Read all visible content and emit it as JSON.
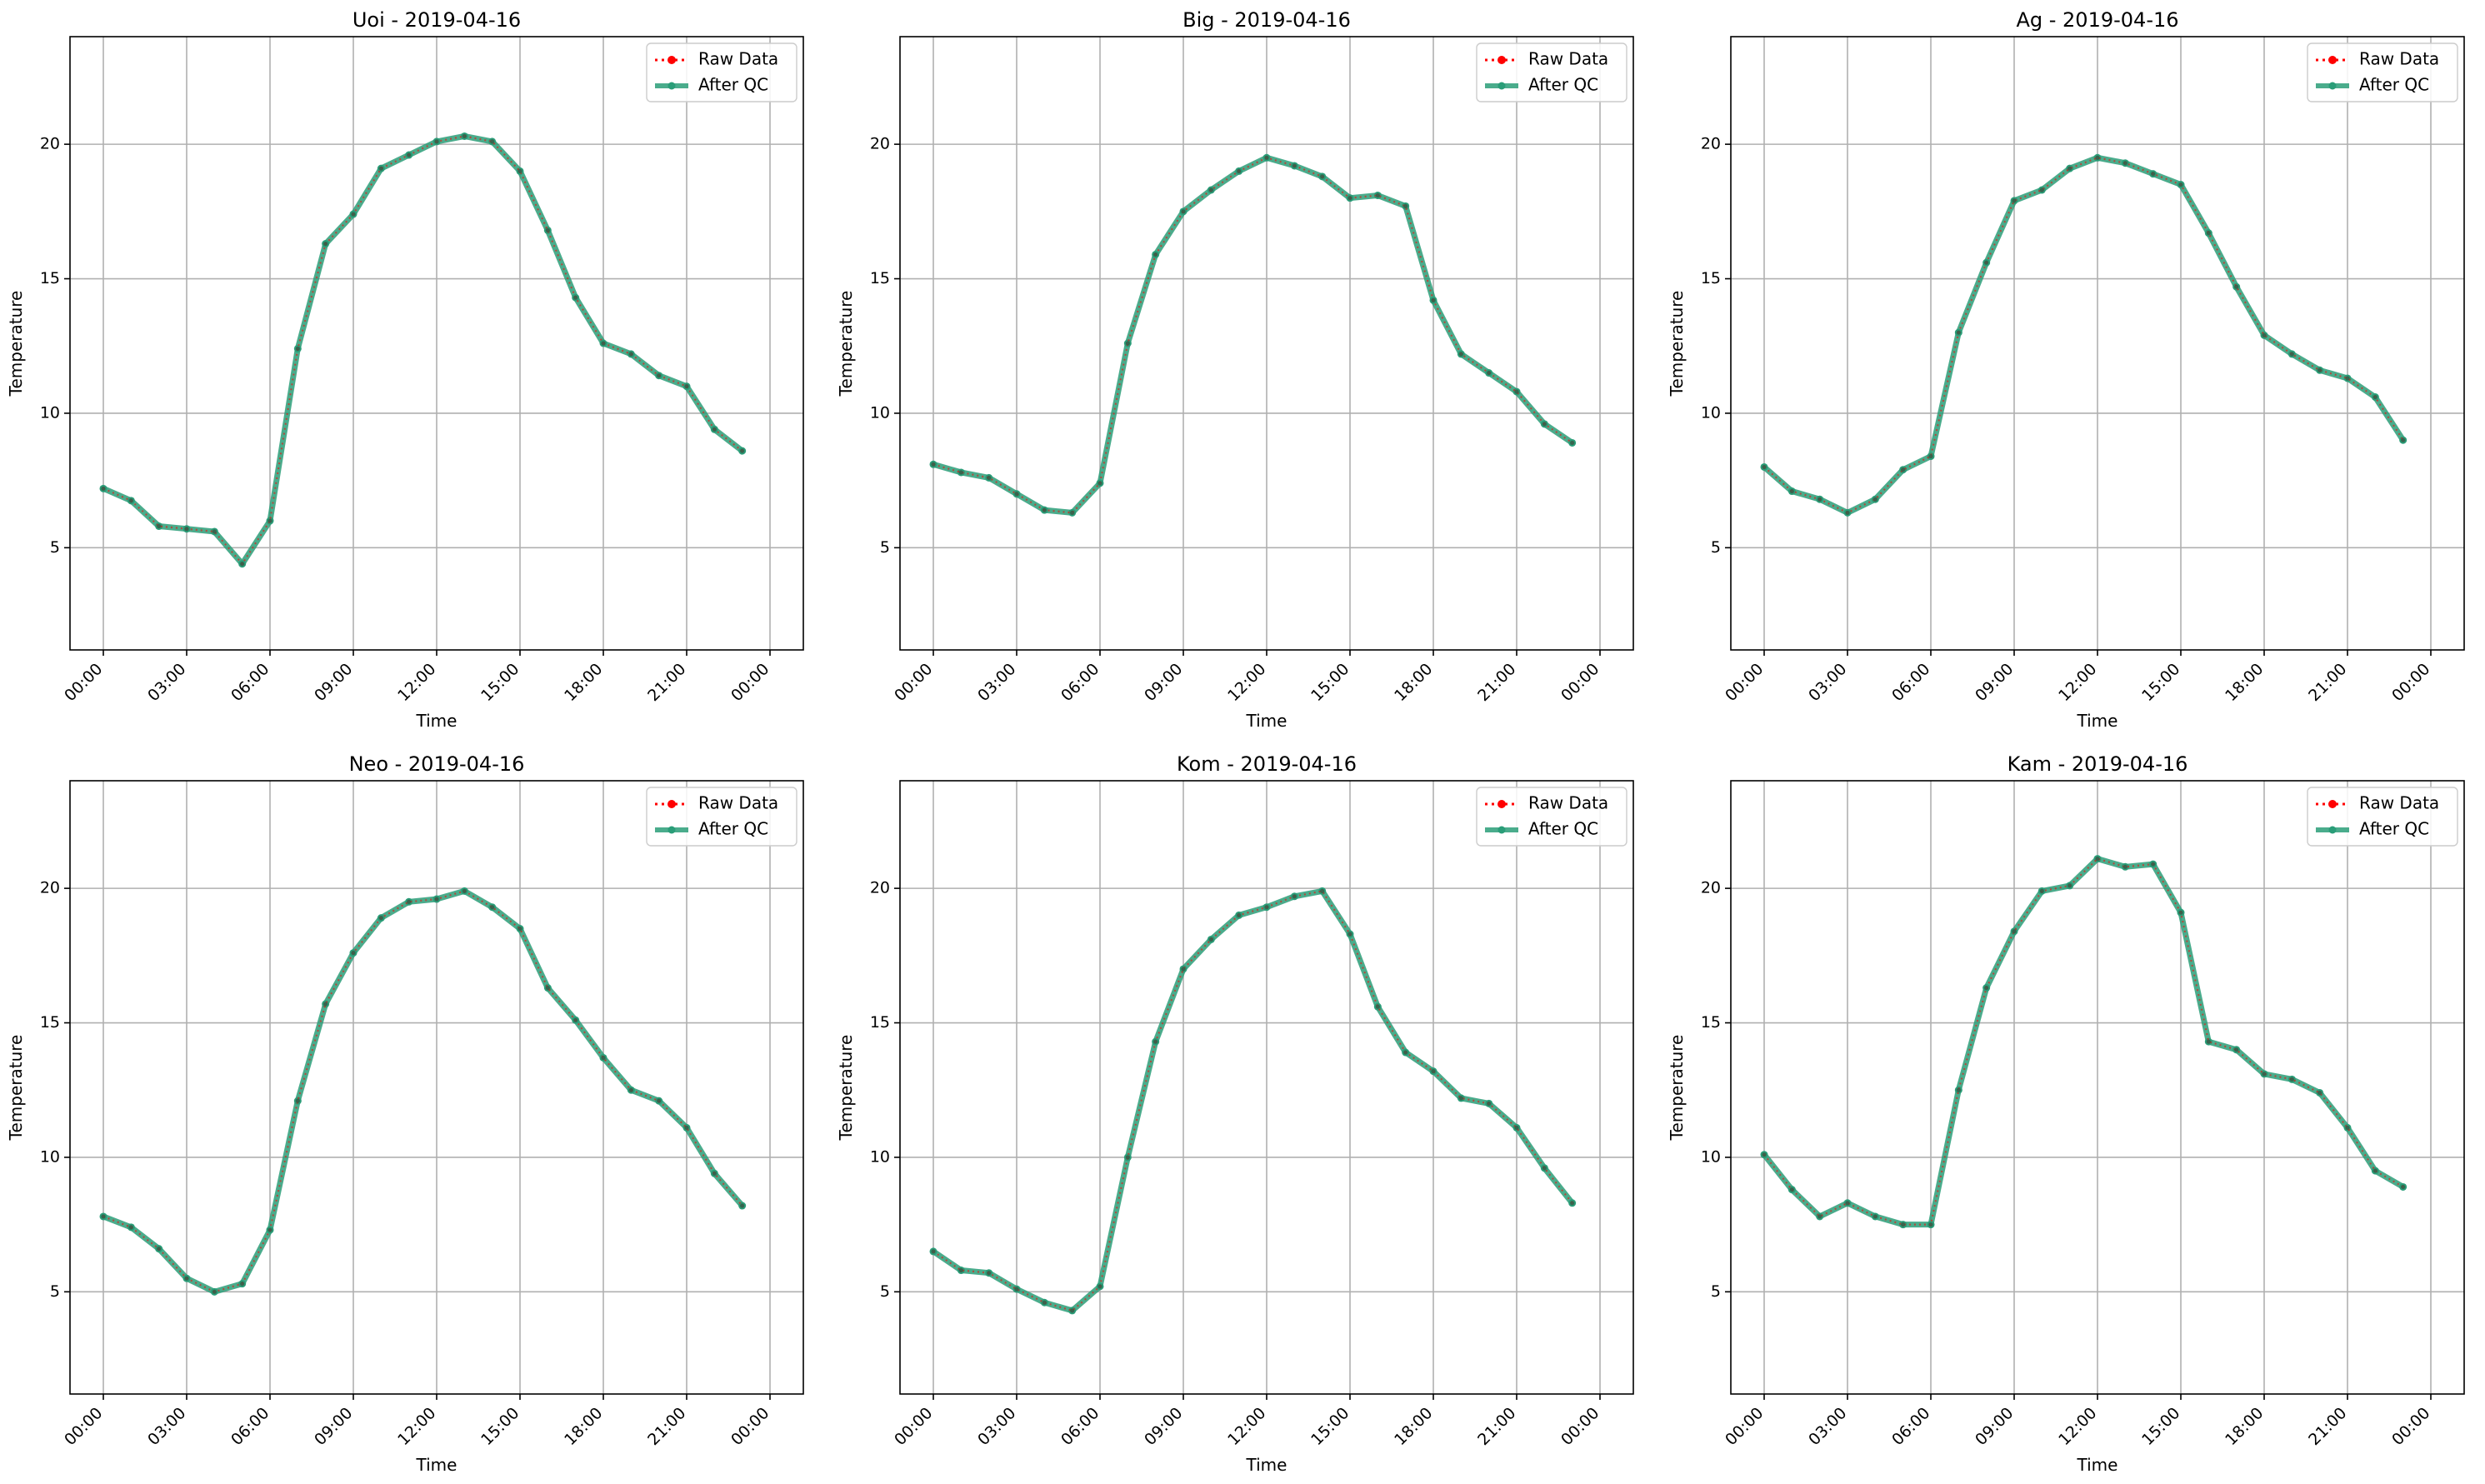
{
  "chart_data": [
    {
      "type": "line",
      "title": "Uoi - 2019-04-16",
      "xlabel": "Time",
      "ylabel": "Temperature",
      "x_ticks": [
        "00:00",
        "03:00",
        "06:00",
        "09:00",
        "12:00",
        "15:00",
        "18:00",
        "21:00",
        "00:00"
      ],
      "y_ticks": [
        5,
        10,
        15,
        20
      ],
      "ylim": [
        1.2,
        24.0
      ],
      "grid": true,
      "legend_position": "top-right",
      "series": [
        {
          "name": "Raw Data",
          "color": "#ff0000",
          "style": "dotted-markers",
          "values": [
            7.2,
            6.75,
            5.8,
            5.7,
            5.6,
            4.4,
            6.0,
            12.4,
            16.3,
            17.4,
            19.1,
            19.6,
            20.1,
            20.3,
            20.1,
            19.0,
            16.8,
            14.3,
            12.6,
            12.2,
            11.4,
            11.0,
            9.4,
            8.6
          ]
        },
        {
          "name": "After QC",
          "color": "#2a9d78",
          "style": "solid-markers",
          "values": [
            7.2,
            6.75,
            5.8,
            5.7,
            5.6,
            4.4,
            6.0,
            12.4,
            16.3,
            17.4,
            19.1,
            19.6,
            20.1,
            20.3,
            20.1,
            19.0,
            16.8,
            14.3,
            12.6,
            12.2,
            11.4,
            11.0,
            9.4,
            8.6
          ]
        }
      ]
    },
    {
      "type": "line",
      "title": "Big - 2019-04-16",
      "xlabel": "Time",
      "ylabel": "Temperature",
      "x_ticks": [
        "00:00",
        "03:00",
        "06:00",
        "09:00",
        "12:00",
        "15:00",
        "18:00",
        "21:00",
        "00:00"
      ],
      "y_ticks": [
        5,
        10,
        15,
        20
      ],
      "ylim": [
        1.2,
        24.0
      ],
      "grid": true,
      "legend_position": "top-right",
      "series": [
        {
          "name": "Raw Data",
          "color": "#ff0000",
          "style": "dotted-markers",
          "values": [
            8.1,
            7.8,
            7.6,
            7.0,
            6.4,
            6.3,
            7.4,
            12.6,
            15.9,
            17.5,
            18.3,
            19.0,
            19.5,
            19.2,
            18.8,
            18.0,
            18.1,
            17.7,
            14.2,
            12.2,
            11.5,
            10.8,
            9.6,
            8.9
          ]
        },
        {
          "name": "After QC",
          "color": "#2a9d78",
          "style": "solid-markers",
          "values": [
            8.1,
            7.8,
            7.6,
            7.0,
            6.4,
            6.3,
            7.4,
            12.6,
            15.9,
            17.5,
            18.3,
            19.0,
            19.5,
            19.2,
            18.8,
            18.0,
            18.1,
            17.7,
            14.2,
            12.2,
            11.5,
            10.8,
            9.6,
            8.9
          ]
        }
      ]
    },
    {
      "type": "line",
      "title": "Ag - 2019-04-16",
      "xlabel": "Time",
      "ylabel": "Temperature",
      "x_ticks": [
        "00:00",
        "03:00",
        "06:00",
        "09:00",
        "12:00",
        "15:00",
        "18:00",
        "21:00",
        "00:00"
      ],
      "y_ticks": [
        5,
        10,
        15,
        20
      ],
      "ylim": [
        1.2,
        24.0
      ],
      "grid": true,
      "legend_position": "top-right",
      "series": [
        {
          "name": "Raw Data",
          "color": "#ff0000",
          "style": "dotted-markers",
          "values": [
            8.0,
            7.1,
            6.8,
            6.3,
            6.8,
            7.9,
            8.4,
            13.0,
            15.6,
            17.9,
            18.3,
            19.1,
            19.5,
            19.3,
            18.9,
            18.5,
            16.7,
            14.7,
            12.9,
            12.2,
            11.6,
            11.3,
            10.6,
            9.0
          ]
        },
        {
          "name": "After QC",
          "color": "#2a9d78",
          "style": "solid-markers",
          "values": [
            8.0,
            7.1,
            6.8,
            6.3,
            6.8,
            7.9,
            8.4,
            13.0,
            15.6,
            17.9,
            18.3,
            19.1,
            19.5,
            19.3,
            18.9,
            18.5,
            16.7,
            14.7,
            12.9,
            12.2,
            11.6,
            11.3,
            10.6,
            9.0
          ]
        }
      ]
    },
    {
      "type": "line",
      "title": "Neo - 2019-04-16",
      "xlabel": "Time",
      "ylabel": "Temperature",
      "x_ticks": [
        "00:00",
        "03:00",
        "06:00",
        "09:00",
        "12:00",
        "15:00",
        "18:00",
        "21:00",
        "00:00"
      ],
      "y_ticks": [
        5,
        10,
        15,
        20
      ],
      "ylim": [
        1.2,
        24.0
      ],
      "grid": true,
      "legend_position": "top-right",
      "series": [
        {
          "name": "Raw Data",
          "color": "#ff0000",
          "style": "dotted-markers",
          "values": [
            7.8,
            7.4,
            6.6,
            5.5,
            5.0,
            5.3,
            7.3,
            12.1,
            15.7,
            17.6,
            18.9,
            19.5,
            19.6,
            19.9,
            19.3,
            18.5,
            16.3,
            15.1,
            13.7,
            12.5,
            12.1,
            11.1,
            9.4,
            8.2
          ]
        },
        {
          "name": "After QC",
          "color": "#2a9d78",
          "style": "solid-markers",
          "values": [
            7.8,
            7.4,
            6.6,
            5.5,
            5.0,
            5.3,
            7.3,
            12.1,
            15.7,
            17.6,
            18.9,
            19.5,
            19.6,
            19.9,
            19.3,
            18.5,
            16.3,
            15.1,
            13.7,
            12.5,
            12.1,
            11.1,
            9.4,
            8.2
          ]
        }
      ]
    },
    {
      "type": "line",
      "title": "Kom - 2019-04-16",
      "xlabel": "Time",
      "ylabel": "Temperature",
      "x_ticks": [
        "00:00",
        "03:00",
        "06:00",
        "09:00",
        "12:00",
        "15:00",
        "18:00",
        "21:00",
        "00:00"
      ],
      "y_ticks": [
        5,
        10,
        15,
        20
      ],
      "ylim": [
        1.2,
        24.0
      ],
      "grid": true,
      "legend_position": "top-right",
      "series": [
        {
          "name": "Raw Data",
          "color": "#ff0000",
          "style": "dotted-markers",
          "values": [
            6.5,
            5.8,
            5.7,
            5.1,
            4.6,
            4.3,
            5.2,
            10.0,
            14.3,
            17.0,
            18.1,
            19.0,
            19.3,
            19.7,
            19.9,
            18.3,
            15.6,
            13.9,
            13.2,
            12.2,
            12.0,
            11.1,
            9.6,
            8.3
          ]
        },
        {
          "name": "After QC",
          "color": "#2a9d78",
          "style": "solid-markers",
          "values": [
            6.5,
            5.8,
            5.7,
            5.1,
            4.6,
            4.3,
            5.2,
            10.0,
            14.3,
            17.0,
            18.1,
            19.0,
            19.3,
            19.7,
            19.9,
            18.3,
            15.6,
            13.9,
            13.2,
            12.2,
            12.0,
            11.1,
            9.6,
            8.3
          ]
        }
      ]
    },
    {
      "type": "line",
      "title": "Kam - 2019-04-16",
      "xlabel": "Time",
      "ylabel": "Temperature",
      "x_ticks": [
        "00:00",
        "03:00",
        "06:00",
        "09:00",
        "12:00",
        "15:00",
        "18:00",
        "21:00",
        "00:00"
      ],
      "y_ticks": [
        5,
        10,
        15,
        20
      ],
      "ylim": [
        1.2,
        24.0
      ],
      "grid": true,
      "legend_position": "top-right",
      "series": [
        {
          "name": "Raw Data",
          "color": "#ff0000",
          "style": "dotted-markers",
          "values": [
            10.1,
            8.8,
            7.8,
            8.3,
            7.8,
            7.5,
            7.5,
            12.5,
            16.3,
            18.4,
            19.9,
            20.1,
            21.1,
            20.8,
            20.9,
            19.1,
            14.3,
            14.0,
            13.1,
            12.9,
            12.4,
            11.1,
            9.5,
            8.9
          ]
        },
        {
          "name": "After QC",
          "color": "#2a9d78",
          "style": "solid-markers",
          "values": [
            10.1,
            8.8,
            7.8,
            8.3,
            7.8,
            7.5,
            7.5,
            12.5,
            16.3,
            18.4,
            19.9,
            20.1,
            21.1,
            20.8,
            20.9,
            19.1,
            14.3,
            14.0,
            13.1,
            12.9,
            12.4,
            11.1,
            9.5,
            8.9
          ]
        }
      ]
    }
  ]
}
